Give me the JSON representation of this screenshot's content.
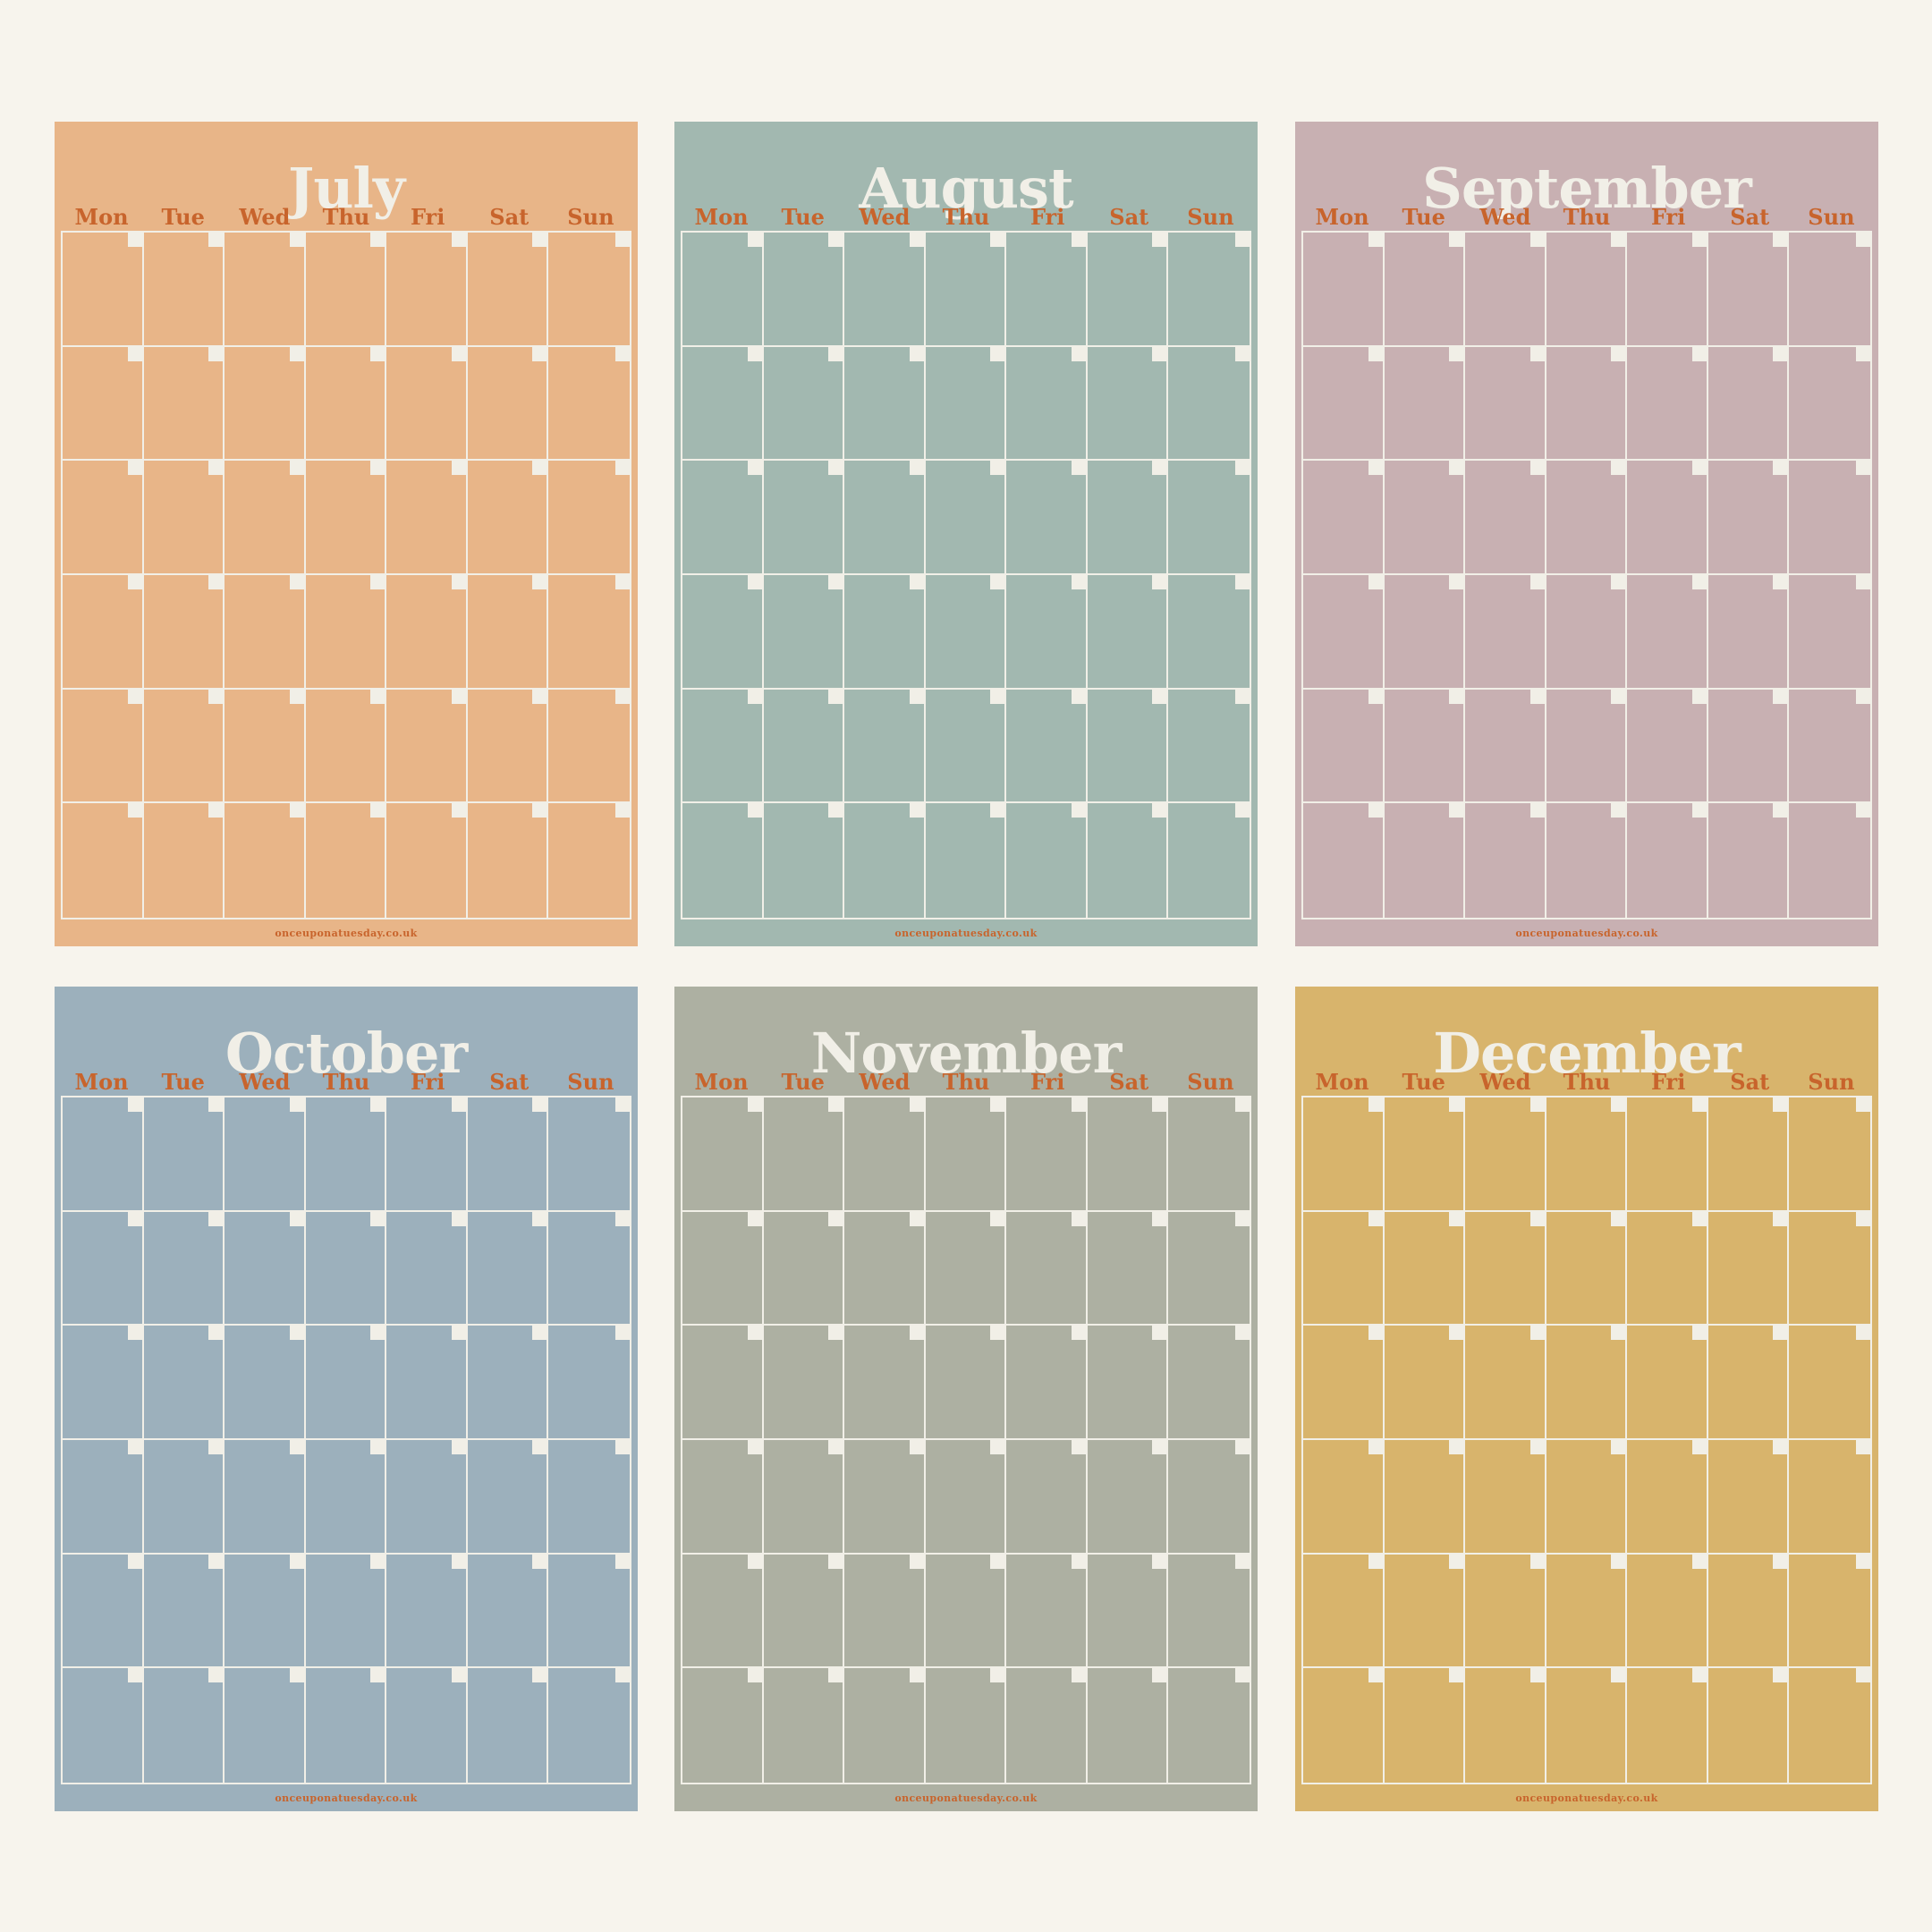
{
  "weekdays": [
    "Mon",
    "Tue",
    "Wed",
    "Thu",
    "Fri",
    "Sat",
    "Sun"
  ],
  "website": "onceuponatuesday.co.uk",
  "colors": {
    "page_background": "#f7f4ed",
    "line_color": "#f1efe7",
    "accent_text": "#c8642c"
  },
  "months": [
    {
      "name": "July",
      "color": "#e8b588"
    },
    {
      "name": "August",
      "color": "#a2b8b0"
    },
    {
      "name": "September",
      "color": "#c8b0b2"
    },
    {
      "name": "October",
      "color": "#9cb0bc"
    },
    {
      "name": "November",
      "color": "#adb0a2"
    },
    {
      "name": "December",
      "color": "#d8b46c"
    }
  ]
}
